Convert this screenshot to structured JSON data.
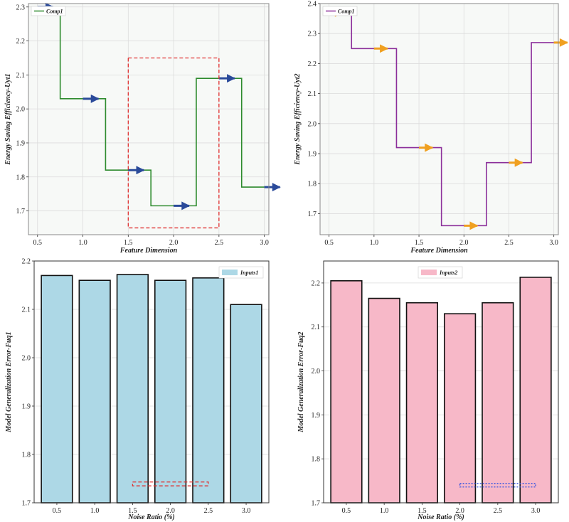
{
  "chart_data": [
    {
      "type": "line",
      "drawstyle": "steps-mid",
      "xlabel": "Feature Dimension",
      "ylabel": "Energy Saving Efficiency-Uyt1",
      "xlim": [
        0.4,
        3.05
      ],
      "ylim": [
        1.63,
        2.31
      ],
      "xticks": [
        "0.5",
        "1.0",
        "1.5",
        "2.0",
        "2.5",
        "3.0"
      ],
      "yticks": [
        "1.7",
        "1.8",
        "1.9",
        "2.0",
        "2.1",
        "2.2",
        "2.3"
      ],
      "legend": "top-left",
      "line_color": "#2e8b2e",
      "arrow_color": "#2a4a9a",
      "series": [
        {
          "name": "Comp1",
          "x": [
            0.5,
            1.0,
            1.5,
            2.0,
            2.5,
            3.0
          ],
          "y": [
            2.3,
            2.03,
            1.82,
            1.715,
            2.09,
            1.77
          ]
        }
      ],
      "highlight_box": {
        "x": [
          1.5,
          2.5
        ],
        "y": [
          1.65,
          2.15
        ],
        "color": "#e03030",
        "style": "dashed"
      }
    },
    {
      "type": "line",
      "drawstyle": "steps-mid",
      "xlabel": "Feature Dimension",
      "ylabel": "Energy Saving Efficiency-Uyt2",
      "xlim": [
        0.4,
        3.05
      ],
      "ylim": [
        1.63,
        2.4
      ],
      "xticks": [
        "0.5",
        "1.0",
        "1.5",
        "2.0",
        "2.5",
        "3.0"
      ],
      "yticks": [
        "1.7",
        "1.8",
        "1.9",
        "2.0",
        "2.1",
        "2.2",
        "2.3",
        "2.4"
      ],
      "legend": "top-left",
      "line_color": "#8b2e9a",
      "arrow_color": "#f0a020",
      "series": [
        {
          "name": "Comp1",
          "x": [
            0.5,
            1.0,
            1.5,
            2.0,
            2.5,
            3.0
          ],
          "y": [
            2.37,
            2.25,
            1.92,
            1.66,
            1.87,
            2.27
          ]
        }
      ]
    },
    {
      "type": "bar",
      "xlabel": "Noise Ratio (%)",
      "ylabel": "Model Generalization Error-Fuq1",
      "ylim": [
        1.7,
        2.2
      ],
      "yticks": [
        "1.7",
        "1.8",
        "1.9",
        "2.0",
        "2.1",
        "2.2"
      ],
      "categories": [
        "0.5",
        "1.0",
        "1.5",
        "2.0",
        "2.5",
        "3.0"
      ],
      "legend": "top-right",
      "bar_color": "#add8e6",
      "series": [
        {
          "name": "Inputs1",
          "values": [
            2.17,
            2.16,
            2.172,
            2.16,
            2.165,
            2.11
          ]
        }
      ],
      "highlight_box": {
        "x": [
          1.5,
          2.5
        ],
        "y": [
          1.735,
          1.743
        ],
        "color": "#e03030",
        "style": "dashed"
      }
    },
    {
      "type": "bar",
      "xlabel": "Noise Ratio (%)",
      "ylabel": "Model Generalization Error-Fuq2",
      "ylim": [
        1.7,
        2.25
      ],
      "yticks": [
        "1.7",
        "1.8",
        "1.9",
        "2.0",
        "2.1",
        "2.2"
      ],
      "categories": [
        "0.5",
        "1.0",
        "1.5",
        "2.0",
        "2.5",
        "3.0"
      ],
      "legend": "top-center",
      "bar_color": "#f7b8c8",
      "series": [
        {
          "name": "Inputs2",
          "values": [
            2.205,
            2.165,
            2.155,
            2.13,
            2.155,
            2.213
          ]
        }
      ],
      "highlight_box": {
        "x": [
          2.0,
          3.0
        ],
        "y": [
          1.736,
          1.744
        ],
        "color": "#3050e0",
        "style": "dotted"
      }
    }
  ]
}
